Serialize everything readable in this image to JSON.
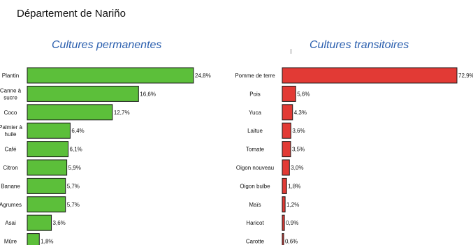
{
  "page": {
    "title": "Département de Nariño"
  },
  "chart_data": [
    {
      "type": "bar",
      "orientation": "horizontal",
      "title": "Cultures permanentes",
      "categories": [
        "Plantin",
        "Canne à sucre",
        "Coco",
        "Palmier à huile",
        "Café",
        "Citron",
        "Banane",
        "Agrumes",
        "Asai",
        "Mûre"
      ],
      "category_lines": [
        [
          "Plantin"
        ],
        [
          "Canne à",
          "sucre"
        ],
        [
          "Coco"
        ],
        [
          "Palmier à",
          "huile"
        ],
        [
          "Café"
        ],
        [
          "Citron"
        ],
        [
          "Banane"
        ],
        [
          "Agrumes"
        ],
        [
          "Asai"
        ],
        [
          "Mûre"
        ]
      ],
      "values": [
        24.8,
        16.6,
        12.7,
        6.4,
        6.1,
        5.9,
        5.7,
        5.7,
        3.6,
        1.8
      ],
      "value_labels": [
        "24,8%",
        "16,6%",
        "12,7%",
        "6,4%",
        "6,1%",
        "5,9%",
        "5,7%",
        "5,7%",
        "3,6%",
        "1,8%"
      ],
      "color": "#5cbf3a",
      "grid": false
    },
    {
      "type": "bar",
      "orientation": "horizontal",
      "title": "Cultures transitoires",
      "categories": [
        "Pomme de terre",
        "Pois",
        "Yuca",
        "Laitue",
        "Tomate",
        "Oigon nouveau",
        "Oigon bulbe",
        "Maïs",
        "Haricot",
        "Carotte"
      ],
      "category_lines": [
        [
          "Pomme de terre"
        ],
        [
          "Pois"
        ],
        [
          "Yuca"
        ],
        [
          "Laitue"
        ],
        [
          "Tomate"
        ],
        [
          "Oigon nouveau"
        ],
        [
          "Oigon bulbe"
        ],
        [
          "Maïs"
        ],
        [
          "Haricot"
        ],
        [
          "Carotte"
        ]
      ],
      "values": [
        72.9,
        5.6,
        4.3,
        3.6,
        3.5,
        3.0,
        1.8,
        1.2,
        0.9,
        0.6
      ],
      "value_labels": [
        "72,9%",
        "5,6%",
        "4,3%",
        "3,6%",
        "3,5%",
        "3,0%",
        "1,8%",
        "1,2%",
        "0,9%",
        "0,6%"
      ],
      "color": "#e23a35",
      "grid": false
    }
  ]
}
